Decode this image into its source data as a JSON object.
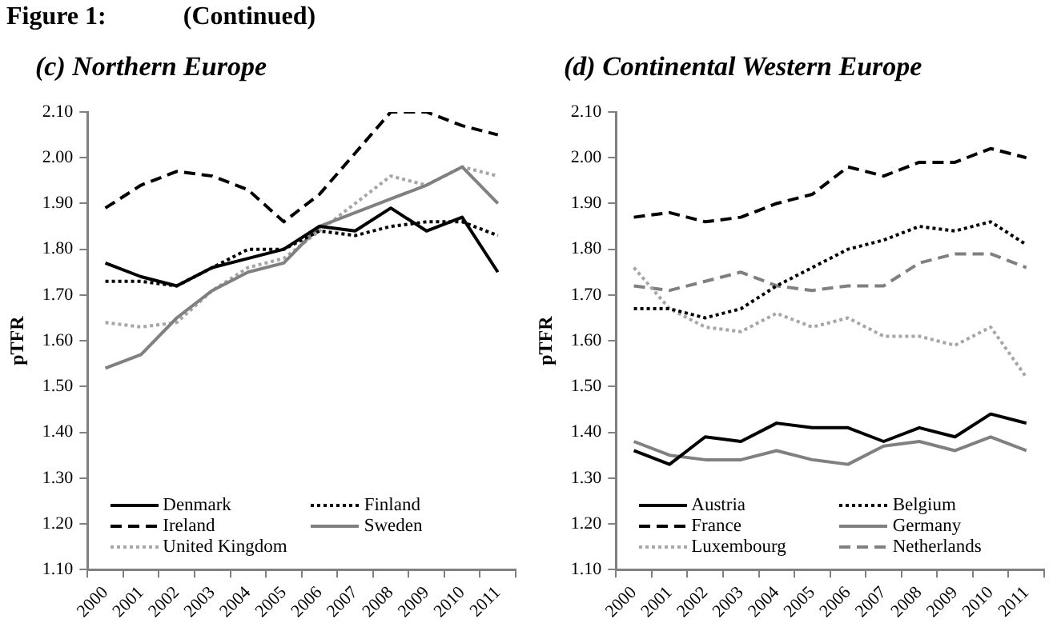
{
  "chart_data": [
    {
      "type": "line",
      "title": "(c) Northern Europe",
      "ylabel": "pTFR",
      "annotations": [
        "Figure 1:            (Continued)"
      ],
      "categories": [
        "2000",
        "2001",
        "2002",
        "2003",
        "2004",
        "2005",
        "2006",
        "2007",
        "2008",
        "2009",
        "2010",
        "2011"
      ],
      "ylim": [
        1.1,
        2.1
      ],
      "yticks": [
        {
          "value": 1.1,
          "label": "1.10"
        },
        {
          "value": 1.2,
          "label": "1.20"
        },
        {
          "value": 1.3,
          "label": "1.30"
        },
        {
          "value": 1.4,
          "label": "1.40"
        },
        {
          "value": 1.5,
          "label": "1.50"
        },
        {
          "value": 1.6,
          "label": "1.60"
        },
        {
          "value": 1.7,
          "label": "1.70"
        },
        {
          "value": 1.8,
          "label": "1.80"
        },
        {
          "value": 1.9,
          "label": "1.90"
        },
        {
          "value": 2.0,
          "label": "2.00"
        },
        {
          "value": 2.1,
          "label": "2.10"
        }
      ],
      "grid": false,
      "legend": "bottom",
      "marker": "none",
      "series": [
        {
          "name": "Denmark",
          "color": "#000000",
          "line_style": "solid",
          "values": [
            1.77,
            1.74,
            1.72,
            1.76,
            1.78,
            1.8,
            1.85,
            1.84,
            1.89,
            1.84,
            1.87,
            1.75
          ]
        },
        {
          "name": "Finland",
          "color": "#000000",
          "line_style": "dotted",
          "values": [
            1.73,
            1.73,
            1.72,
            1.76,
            1.8,
            1.8,
            1.84,
            1.83,
            1.85,
            1.86,
            1.86,
            1.83
          ]
        },
        {
          "name": "Ireland",
          "color": "#000000",
          "line_style": "dashed",
          "values": [
            1.89,
            1.94,
            1.97,
            1.96,
            1.93,
            1.86,
            1.92,
            2.01,
            2.1,
            2.1,
            2.07,
            2.05
          ]
        },
        {
          "name": "Sweden",
          "color": "#808080",
          "line_style": "solid",
          "values": [
            1.54,
            1.57,
            1.65,
            1.71,
            1.75,
            1.77,
            1.85,
            1.88,
            1.91,
            1.94,
            1.98,
            1.9
          ]
        },
        {
          "name": "United Kingdom",
          "color": "#a6a6a6",
          "line_style": "dotted",
          "values": [
            1.64,
            1.63,
            1.64,
            1.71,
            1.76,
            1.78,
            1.84,
            1.9,
            1.96,
            1.94,
            1.98,
            1.96
          ]
        }
      ]
    },
    {
      "type": "line",
      "title": "(d) Continental Western Europe",
      "ylabel": "pTFR",
      "categories": [
        "2000",
        "2001",
        "2002",
        "2003",
        "2004",
        "2005",
        "2006",
        "2007",
        "2008",
        "2009",
        "2010",
        "2011"
      ],
      "ylim": [
        1.1,
        2.1
      ],
      "yticks": [
        {
          "value": 1.1,
          "label": "1.10"
        },
        {
          "value": 1.2,
          "label": "1.20"
        },
        {
          "value": 1.3,
          "label": "1.30"
        },
        {
          "value": 1.4,
          "label": "1.40"
        },
        {
          "value": 1.5,
          "label": "1.50"
        },
        {
          "value": 1.6,
          "label": "1.60"
        },
        {
          "value": 1.7,
          "label": "1.70"
        },
        {
          "value": 1.8,
          "label": "1.80"
        },
        {
          "value": 1.9,
          "label": "1.90"
        },
        {
          "value": 2.0,
          "label": "2.00"
        },
        {
          "value": 2.1,
          "label": "2.10"
        }
      ],
      "grid": false,
      "legend": "bottom",
      "marker": "none",
      "series": [
        {
          "name": "Austria",
          "color": "#000000",
          "line_style": "solid",
          "values": [
            1.36,
            1.33,
            1.39,
            1.38,
            1.42,
            1.41,
            1.41,
            1.38,
            1.41,
            1.39,
            1.44,
            1.42
          ]
        },
        {
          "name": "Belgium",
          "color": "#000000",
          "line_style": "dotted",
          "values": [
            1.67,
            1.67,
            1.65,
            1.67,
            1.72,
            1.76,
            1.8,
            1.82,
            1.85,
            1.84,
            1.86,
            1.81
          ]
        },
        {
          "name": "France",
          "color": "#000000",
          "line_style": "dashed",
          "values": [
            1.87,
            1.88,
            1.86,
            1.87,
            1.9,
            1.92,
            1.98,
            1.96,
            1.99,
            1.99,
            2.02,
            2.0
          ]
        },
        {
          "name": "Germany",
          "color": "#808080",
          "line_style": "solid",
          "values": [
            1.38,
            1.35,
            1.34,
            1.34,
            1.36,
            1.34,
            1.33,
            1.37,
            1.38,
            1.36,
            1.39,
            1.36
          ]
        },
        {
          "name": "Luxembourg",
          "color": "#a6a6a6",
          "line_style": "dotted",
          "values": [
            1.76,
            1.67,
            1.63,
            1.62,
            1.66,
            1.63,
            1.65,
            1.61,
            1.61,
            1.59,
            1.63,
            1.52
          ]
        },
        {
          "name": "Netherlands",
          "color": "#808080",
          "line_style": "dashed",
          "values": [
            1.72,
            1.71,
            1.73,
            1.75,
            1.72,
            1.71,
            1.72,
            1.72,
            1.77,
            1.79,
            1.79,
            1.76
          ]
        }
      ]
    }
  ]
}
